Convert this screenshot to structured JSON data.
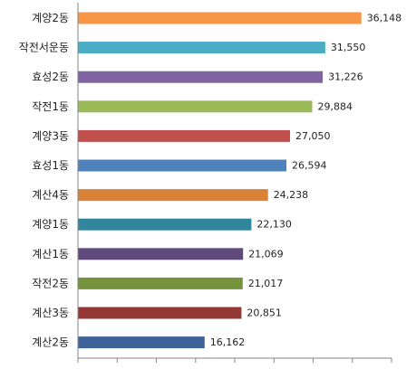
{
  "chart_data": {
    "type": "bar",
    "orientation": "horizontal",
    "categories": [
      "계양2동",
      "작전서운동",
      "효성2동",
      "작전1동",
      "계양3동",
      "효성1동",
      "계산4동",
      "계양1동",
      "계산1동",
      "작전2동",
      "계산3동",
      "계산2동"
    ],
    "values": [
      36148,
      31550,
      31226,
      29884,
      27050,
      26594,
      24238,
      22130,
      21069,
      21017,
      20851,
      16162
    ],
    "value_labels": [
      "36,148",
      "31,550",
      "31,226",
      "29,884",
      "27,050",
      "26,594",
      "24,238",
      "22,130",
      "21,069",
      "21,017",
      "20,851",
      "16,162"
    ],
    "colors": [
      "#f79646",
      "#4bacc6",
      "#8064a2",
      "#9bbb59",
      "#c0504d",
      "#4f81bd",
      "#d88137",
      "#31859c",
      "#604a7b",
      "#76923c",
      "#953734",
      "#3d6399"
    ],
    "xlim": [
      0,
      40000
    ],
    "x_tick_count": 9,
    "title": "",
    "xlabel": "",
    "ylabel": "",
    "grid": false,
    "legend": "none"
  }
}
